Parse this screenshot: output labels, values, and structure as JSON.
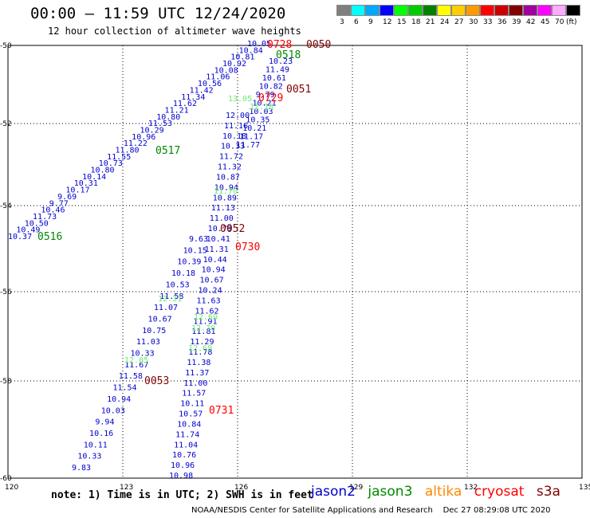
{
  "header": {
    "title": "00:00 – 11:59 UTC 12/24/2020",
    "subtitle": "12 hour collection of altimeter wave heights"
  },
  "legend": {
    "unit": "(ft)",
    "bins": [
      {
        "label": "3",
        "color": "#7f7f7f"
      },
      {
        "label": "6",
        "color": "#00ffff"
      },
      {
        "label": "9",
        "color": "#00a8ff"
      },
      {
        "label": "12",
        "color": "#0000ff"
      },
      {
        "label": "15",
        "color": "#00ff00"
      },
      {
        "label": "18",
        "color": "#00cc00"
      },
      {
        "label": "21",
        "color": "#008000"
      },
      {
        "label": "24",
        "color": "#ffff00"
      },
      {
        "label": "27",
        "color": "#ffcc00"
      },
      {
        "label": "30",
        "color": "#ff9900"
      },
      {
        "label": "33",
        "color": "#ff0000"
      },
      {
        "label": "36",
        "color": "#cc0000"
      },
      {
        "label": "39",
        "color": "#800000"
      },
      {
        "label": "42",
        "color": "#a000a0"
      },
      {
        "label": "45",
        "color": "#ff00ff"
      },
      {
        "label": "70",
        "color": "#ffaaff"
      },
      {
        "label": "",
        "color": "#000000"
      }
    ]
  },
  "axes": {
    "x_ticks": [
      "120",
      "123",
      "126",
      "129",
      "132",
      "135"
    ],
    "y_ticks": [
      "-50",
      "-52",
      "-54",
      "-56",
      "-58",
      "-60"
    ]
  },
  "colors": {
    "jason2": "#0000cc",
    "jason3": "#008800",
    "altika": "#ff8800",
    "cryosat": "#ff0000",
    "s3a": "#800000",
    "light": "#66ee66"
  },
  "tracks": [
    {
      "sat": "jason2",
      "values": [
        "10.37",
        "10.49",
        "10.50",
        "11.73",
        "10.46",
        "9.77",
        "9.69",
        "10.17",
        "10.31",
        "10.14",
        "10.80",
        "10.73",
        "11.55",
        "11.80",
        "11.22",
        "10.96",
        "10.29",
        "11.53",
        "10.80",
        "11.21",
        "11.62",
        "11.34",
        "11.42",
        "10.56",
        "11.06",
        "10.08",
        "10.92",
        "10.81",
        "10.84",
        "10.05"
      ]
    },
    {
      "sat": "jason2",
      "values": [
        "12.00",
        "11.16",
        "10.18",
        "10.33",
        "11.72",
        "11.32",
        "10.87",
        "10.94",
        "10.89",
        "11.13",
        "11.00",
        "10.79",
        "10.41",
        "11.31",
        "10.44",
        "10.94",
        "10.67",
        "10.24",
        "11.63",
        "11.62",
        "11.91",
        "11.81",
        "11.29",
        "11.78",
        "11.38",
        "11.37",
        "11.00",
        "11.57",
        "10.11",
        "10.57",
        "10.84",
        "11.74",
        "11.04",
        "10.76",
        "10.96",
        "10.98"
      ]
    },
    {
      "sat": "jason2",
      "values": [
        "10.23",
        "11.49",
        "10.61",
        "10.82",
        "9.79",
        "10.21",
        "10.03",
        "10.35",
        "10.21",
        "11.17",
        "11.77"
      ]
    },
    {
      "sat": "jason2",
      "values": [
        "9.63",
        "10.15",
        "10.39",
        "10.18",
        "10.53",
        "11.58",
        "11.07",
        "10.67",
        "10.75",
        "11.03",
        "10.33",
        "11.67",
        "11.58",
        "11.54",
        "10.94",
        "10.03",
        "9.94",
        "10.16",
        "10.11",
        "10.33",
        "9.83"
      ]
    }
  ],
  "light_values": [
    "13.05",
    "12.18",
    "11.70",
    "12.31",
    "12.69",
    "12.70",
    "12.69",
    "12.05"
  ],
  "time_labels": [
    {
      "text": "0516",
      "sat": "jason3"
    },
    {
      "text": "0517",
      "sat": "jason3"
    },
    {
      "text": "0518",
      "sat": "jason3"
    },
    {
      "text": "0728",
      "sat": "cryosat"
    },
    {
      "text": "0729",
      "sat": "cryosat"
    },
    {
      "text": "0730",
      "sat": "cryosat"
    },
    {
      "text": "0731",
      "sat": "cryosat"
    },
    {
      "text": "0050",
      "sat": "s3a"
    },
    {
      "text": "0051",
      "sat": "s3a"
    },
    {
      "text": "0052",
      "sat": "s3a"
    },
    {
      "text": "0053",
      "sat": "s3a"
    }
  ],
  "note": "note: 1) Time is in UTC; 2) SWH is in feet",
  "satellites": [
    {
      "name": "jason2",
      "color": "#0000cc"
    },
    {
      "name": "jason3",
      "color": "#008800"
    },
    {
      "name": "altika",
      "color": "#ff8800"
    },
    {
      "name": "cryosat",
      "color": "#ff0000"
    },
    {
      "name": "s3a",
      "color": "#800000"
    }
  ],
  "credit": "NOAA/NESDIS Center for Satellite Applications and Research    Dec 27 08:29:08 UTC 2020"
}
